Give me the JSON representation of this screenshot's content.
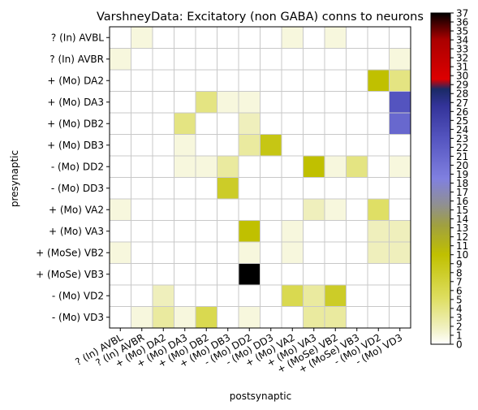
{
  "chart_data": {
    "type": "heatmap",
    "title": "VarshneyData: Excitatory (non GABA) conns to neurons",
    "xlabel": "postsynaptic",
    "ylabel": "presynaptic",
    "rows": [
      "? (In) AVBL",
      "? (In) AVBR",
      "+ (Mo) DA2",
      "+ (Mo) DA3",
      "+ (Mo) DB2",
      "+ (Mo) DB3",
      "- (Mo) DD2",
      "- (Mo) DD3",
      "+ (Mo) VA2",
      "+ (Mo) VA3",
      "+ (MoSe) VB2",
      "+ (MoSe) VB3",
      "- (Mo) VD2",
      "- (Mo) VD3"
    ],
    "columns": [
      "? (In) AVBL",
      "? (In) AVBR",
      "+ (Mo) DA2",
      "+ (Mo) DA3",
      "+ (Mo) DB2",
      "+ (Mo) DB3",
      "- (Mo) DD2",
      "- (Mo) DD3",
      "+ (Mo) VA2",
      "+ (Mo) VA3",
      "+ (MoSe) VB2",
      "+ (MoSe) VB3",
      "- (Mo) VD2",
      "- (Mo) VD3"
    ],
    "values": [
      [
        0,
        1,
        0,
        0,
        0,
        0,
        0,
        0,
        1,
        0,
        1,
        0,
        0,
        0
      ],
      [
        1,
        0,
        0,
        0,
        0,
        0,
        0,
        0,
        0,
        0,
        0,
        0,
        0,
        1
      ],
      [
        0,
        0,
        0,
        0,
        0,
        0,
        0,
        0,
        0,
        0,
        0,
        0,
        10,
        4
      ],
      [
        0,
        0,
        0,
        0,
        4,
        1,
        1,
        0,
        0,
        0,
        0,
        0,
        0,
        23
      ],
      [
        0,
        0,
        0,
        4,
        0,
        0,
        2,
        0,
        0,
        0,
        0,
        0,
        0,
        21
      ],
      [
        0,
        0,
        0,
        1,
        0,
        0,
        3,
        9,
        0,
        0,
        0,
        0,
        0,
        0
      ],
      [
        0,
        0,
        0,
        1,
        1,
        3,
        0,
        0,
        0,
        10,
        1,
        4,
        0,
        1
      ],
      [
        0,
        0,
        0,
        0,
        0,
        8,
        0,
        0,
        0,
        0,
        0,
        0,
        0,
        0
      ],
      [
        1,
        0,
        0,
        0,
        0,
        0,
        0,
        0,
        0,
        2,
        1,
        0,
        5,
        0
      ],
      [
        0,
        0,
        0,
        0,
        0,
        0,
        10,
        0,
        1,
        0,
        0,
        0,
        2,
        2
      ],
      [
        1,
        0,
        0,
        0,
        0,
        0,
        1,
        0,
        1,
        0,
        0,
        0,
        2,
        2
      ],
      [
        0,
        0,
        0,
        0,
        0,
        0,
        37,
        0,
        0,
        0,
        0,
        0,
        0,
        0
      ],
      [
        0,
        0,
        2,
        0,
        0,
        0,
        0,
        0,
        6,
        3,
        8,
        0,
        0,
        0
      ],
      [
        0,
        1,
        3,
        1,
        6,
        0,
        1,
        0,
        0,
        3,
        3,
        0,
        0,
        0
      ]
    ],
    "colorbar": {
      "min": 0,
      "max": 37,
      "ticks": [
        0,
        1,
        2,
        3,
        4,
        5,
        6,
        7,
        8,
        9,
        10,
        11,
        12,
        13,
        14,
        15,
        16,
        17,
        18,
        19,
        20,
        21,
        22,
        23,
        24,
        25,
        26,
        27,
        28,
        29,
        30,
        31,
        32,
        33,
        34,
        35,
        36,
        37
      ],
      "colormap": "gist_stern-like: white -> olive yellow -> grey -> blue -> navy -> red -> black"
    },
    "grid": true
  },
  "colors": {
    "stops": [
      [
        0,
        "#ffffff"
      ],
      [
        0.05,
        "#f0f0c0"
      ],
      [
        0.14,
        "#dede60"
      ],
      [
        0.27,
        "#c0c000"
      ],
      [
        0.36,
        "#a0a040"
      ],
      [
        0.42,
        "#909090"
      ],
      [
        0.5,
        "#8080e0"
      ],
      [
        0.62,
        "#5555c0"
      ],
      [
        0.72,
        "#333399"
      ],
      [
        0.77,
        "#1a2a66"
      ],
      [
        0.8,
        "#dd0000"
      ],
      [
        0.92,
        "#aa0000"
      ],
      [
        1,
        "#000000"
      ]
    ],
    "gridline": "#c8c8c8"
  }
}
